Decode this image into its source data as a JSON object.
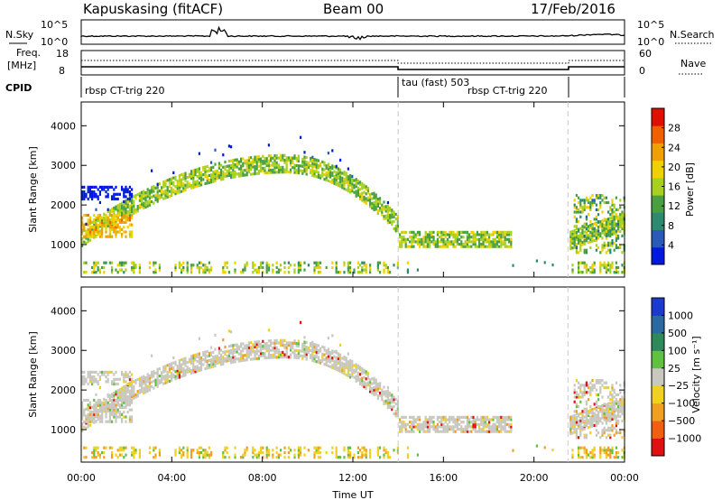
{
  "header": {
    "station": "Kapuskasing (fitACF)",
    "beam": "Beam 00",
    "date": "17/Feb/2016"
  },
  "strips": {
    "nsky_label": "N.Sky",
    "nsky_ticks": [
      "10^5",
      "10^0"
    ],
    "nsearch_label": "N.Search",
    "nsearch_ticks": [
      "10^5",
      "10^0"
    ],
    "freq_label_1": "Freq.",
    "freq_label_2": "[MHz]",
    "freq_ticks": [
      "18",
      "8"
    ],
    "nave_label": "Nave",
    "nave_ticks": [
      "60",
      "0"
    ],
    "cpid_label": "CPID",
    "cpid_segments": [
      {
        "label": "rbsp CT-trig 220",
        "start": 0,
        "end": 14.0
      },
      {
        "label": "tau (fast) 503",
        "start": 14.0,
        "end": 21.5
      },
      {
        "label": "rbsp CT-trig 220",
        "start": 21.5,
        "end": 24
      }
    ]
  },
  "chart_data": [
    {
      "type": "heatmap",
      "name": "power",
      "ylabel": "Slant Range [km]",
      "ylim": [
        180,
        4600
      ],
      "y_ticks": [
        1000,
        2000,
        3000,
        4000
      ],
      "x_ticks_hours": [
        0,
        4,
        8,
        12,
        16,
        20,
        24
      ],
      "colorbar_label": "Power [dB]",
      "colorbar_ticks": [
        "28",
        "24",
        "20",
        "16",
        "12",
        "8",
        "4"
      ],
      "colorbar_colors": [
        "#0018e0",
        "#2a5ab8",
        "#2e8a6e",
        "#4aa040",
        "#a8d020",
        "#f0d000",
        "#f0a000",
        "#f06000",
        "#e01000"
      ]
    },
    {
      "type": "heatmap",
      "name": "velocity",
      "ylabel": "Slant Range [km]",
      "ylim": [
        180,
        4600
      ],
      "y_ticks": [
        1000,
        2000,
        3000,
        4000
      ],
      "x_ticks_hours": [
        0,
        4,
        8,
        12,
        16,
        20,
        24
      ],
      "x_tick_labels": [
        "00:00",
        "04:00",
        "08:00",
        "12:00",
        "16:00",
        "20:00",
        "00:00"
      ],
      "xlabel": "Time UT",
      "colorbar_label": "Velocity [m s⁻¹]",
      "colorbar_ticks": [
        "1000",
        "500",
        "100",
        "25",
        "−25",
        "−100",
        "−500",
        "−1000"
      ],
      "colorbar_colors": [
        "#1a3ad0",
        "#2a6aa0",
        "#2e8a5a",
        "#60c040",
        "#c8c8c0",
        "#f0d020",
        "#f0a020",
        "#f06010",
        "#e01010"
      ]
    }
  ],
  "markers": {
    "dashed_lines_hours": [
      14.0,
      21.5
    ]
  }
}
